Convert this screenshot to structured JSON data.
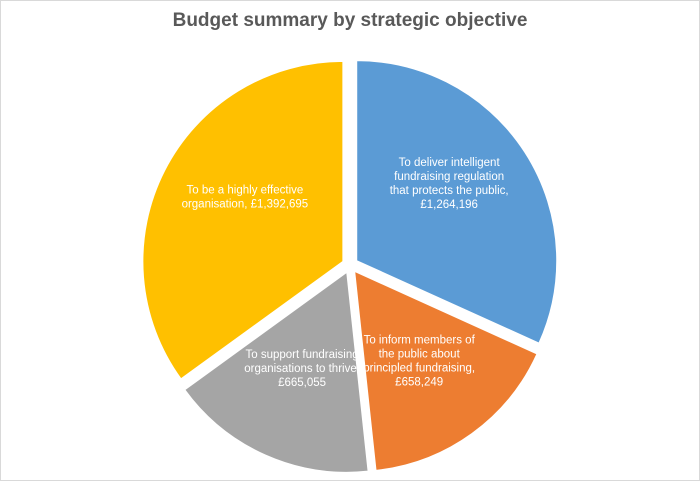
{
  "chart_data": {
    "type": "pie",
    "title": "Budget summary by strategic objective",
    "slices": [
      {
        "label": "To deliver intelligent fundraising regulation that protects the public",
        "value": 1264196,
        "label_lines": [
          "To deliver intelligent",
          "fundraising  regulation",
          "that protects the public,",
          "£1,264,196"
        ],
        "color": "#5b9bd5"
      },
      {
        "label": "To inform members of the public about principled fundraising",
        "value": 658249,
        "label_lines": [
          "To inform members of",
          "the public  about",
          "principled fundraising,",
          "£658,249"
        ],
        "color": "#ed7d31"
      },
      {
        "label": "To support fundraising organisations to thrive",
        "value": 665055,
        "label_lines": [
          "To support fundraising",
          "organisations to thrive,",
          "£665,055"
        ],
        "color": "#a5a5a5"
      },
      {
        "label": "To be a  highly effective organisation",
        "value": 1392695,
        "label_lines": [
          "To be a  highly effective",
          "organisation, £1,392,695"
        ],
        "color": "#ffc000"
      }
    ],
    "start_angle_deg": 0,
    "direction": "clockwise",
    "exploded": true,
    "legend": "none",
    "data_labels": "inside"
  }
}
